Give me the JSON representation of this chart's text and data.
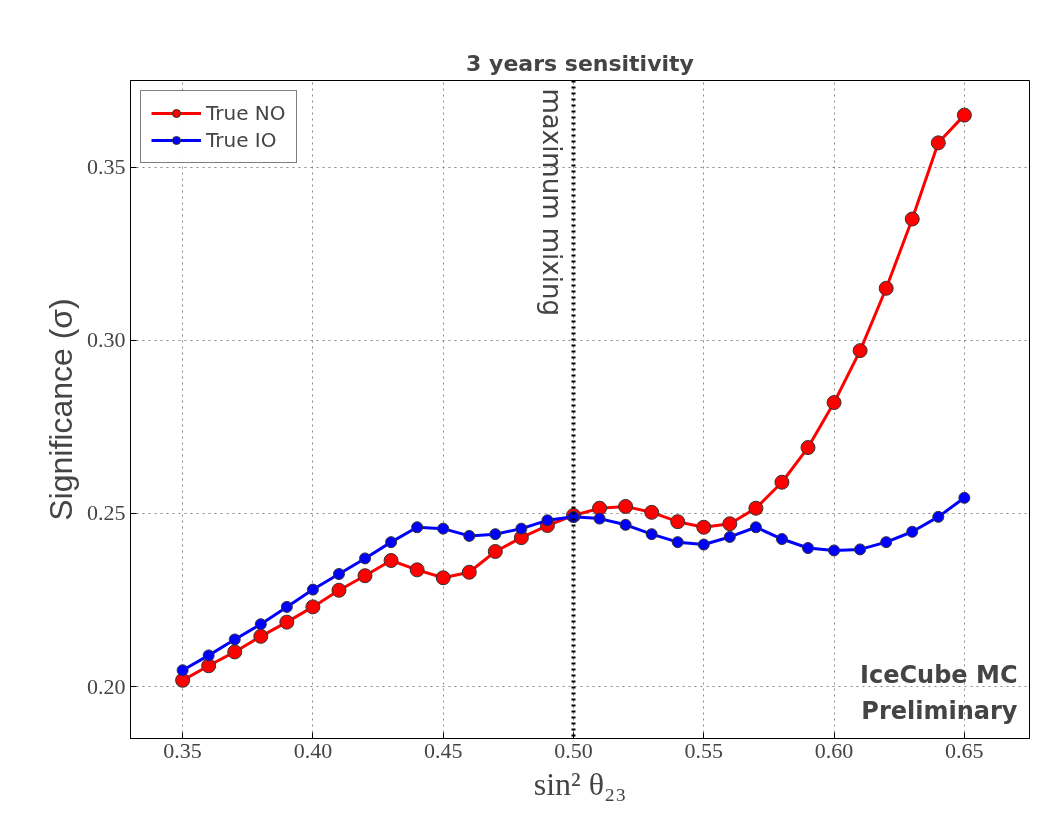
{
  "chart_data": {
    "type": "line",
    "title": "3 years sensitivity",
    "xlabel": "sin² θ₂₃",
    "ylabel": "Significance (σ)",
    "x": [
      0.35,
      0.36,
      0.37,
      0.38,
      0.39,
      0.4,
      0.41,
      0.42,
      0.43,
      0.44,
      0.45,
      0.46,
      0.47,
      0.48,
      0.49,
      0.5,
      0.51,
      0.52,
      0.53,
      0.54,
      0.55,
      0.56,
      0.57,
      0.58,
      0.59,
      0.6,
      0.61,
      0.62,
      0.63,
      0.64,
      0.65
    ],
    "series": [
      {
        "name": "True NO",
        "color": "#ff0000",
        "values": [
          0.2018,
          0.206,
          0.21,
          0.2145,
          0.2186,
          0.223,
          0.2278,
          0.232,
          0.2364,
          0.2337,
          0.2314,
          0.233,
          0.239,
          0.243,
          0.2465,
          0.2494,
          0.2515,
          0.252,
          0.2503,
          0.2476,
          0.246,
          0.247,
          0.2515,
          0.259,
          0.269,
          0.282,
          0.297,
          0.315,
          0.335,
          0.357,
          0.365
        ]
      },
      {
        "name": "True IO",
        "color": "#0000ff",
        "values": [
          0.2047,
          0.209,
          0.2136,
          0.218,
          0.223,
          0.228,
          0.2325,
          0.237,
          0.2417,
          0.246,
          0.2456,
          0.2435,
          0.244,
          0.2456,
          0.248,
          0.249,
          0.2485,
          0.2467,
          0.244,
          0.2417,
          0.241,
          0.2432,
          0.246,
          0.2426,
          0.24,
          0.2393,
          0.2396,
          0.2417,
          0.2447,
          0.249,
          0.2545
        ]
      }
    ],
    "xlim": [
      0.33,
      0.675
    ],
    "ylim": [
      0.185,
      0.375
    ],
    "xticks": [
      {
        "value": 0.35,
        "label": "0.35"
      },
      {
        "value": 0.4,
        "label": "0.40"
      },
      {
        "value": 0.45,
        "label": "0.45"
      },
      {
        "value": 0.5,
        "label": "0.50"
      },
      {
        "value": 0.55,
        "label": "0.55"
      },
      {
        "value": 0.6,
        "label": "0.60"
      },
      {
        "value": 0.65,
        "label": "0.65"
      }
    ],
    "yticks": [
      {
        "value": 0.2,
        "label": "0.20"
      },
      {
        "value": 0.25,
        "label": "0.25"
      },
      {
        "value": 0.3,
        "label": "0.30"
      },
      {
        "value": 0.35,
        "label": "0.35"
      }
    ],
    "ref_lines": [
      {
        "axis": "x",
        "value": 0.5,
        "label": "maximum mixing",
        "color": "#000000",
        "line_style": "dotted"
      }
    ],
    "annotations": [
      "IceCube MC",
      "Preliminary"
    ],
    "grid": true,
    "legend": "top left",
    "marker": "circle",
    "line_style": "solid"
  }
}
